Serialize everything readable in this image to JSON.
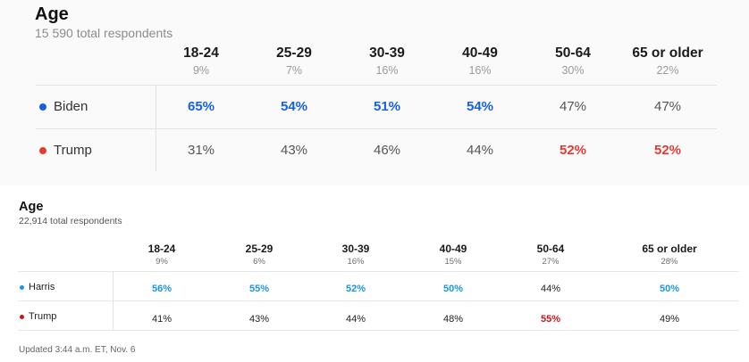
{
  "top": {
    "title": "Age",
    "respondents": "15 590 total respondents",
    "colors": {
      "candidate_a": "#1560e8",
      "candidate_b": "#e53935"
    },
    "columns": [
      {
        "label": "18-24",
        "share": "9%"
      },
      {
        "label": "25-29",
        "share": "7%"
      },
      {
        "label": "30-39",
        "share": "16%"
      },
      {
        "label": "40-49",
        "share": "16%"
      },
      {
        "label": "50-64",
        "share": "30%"
      },
      {
        "label": "65 or older",
        "share": "22%"
      }
    ],
    "rows": [
      {
        "name": "Biden",
        "values": [
          "65%",
          "54%",
          "51%",
          "54%",
          "47%",
          "47%"
        ],
        "winner": [
          true,
          true,
          true,
          true,
          false,
          false
        ]
      },
      {
        "name": "Trump",
        "values": [
          "31%",
          "43%",
          "46%",
          "44%",
          "52%",
          "52%"
        ],
        "winner": [
          false,
          false,
          false,
          false,
          true,
          true
        ]
      }
    ]
  },
  "bottom": {
    "title": "Age",
    "respondents": "22,914 total respondents",
    "colors": {
      "candidate_a": "#1a95e0",
      "candidate_b": "#c4171d"
    },
    "columns": [
      {
        "label": "18-24",
        "share": "9%"
      },
      {
        "label": "25-29",
        "share": "6%"
      },
      {
        "label": "30-39",
        "share": "16%"
      },
      {
        "label": "40-49",
        "share": "15%"
      },
      {
        "label": "50-64",
        "share": "27%"
      },
      {
        "label": "65 or older",
        "share": "28%"
      }
    ],
    "rows": [
      {
        "name": "Harris",
        "values": [
          "56%",
          "55%",
          "52%",
          "50%",
          "44%",
          "50%"
        ],
        "winner": [
          true,
          true,
          true,
          true,
          false,
          true
        ]
      },
      {
        "name": "Trump",
        "values": [
          "41%",
          "43%",
          "44%",
          "48%",
          "55%",
          "49%"
        ],
        "winner": [
          false,
          false,
          false,
          false,
          true,
          false
        ]
      }
    ],
    "updated": "Updated 3:44 a.m. ET, Nov. 6"
  }
}
